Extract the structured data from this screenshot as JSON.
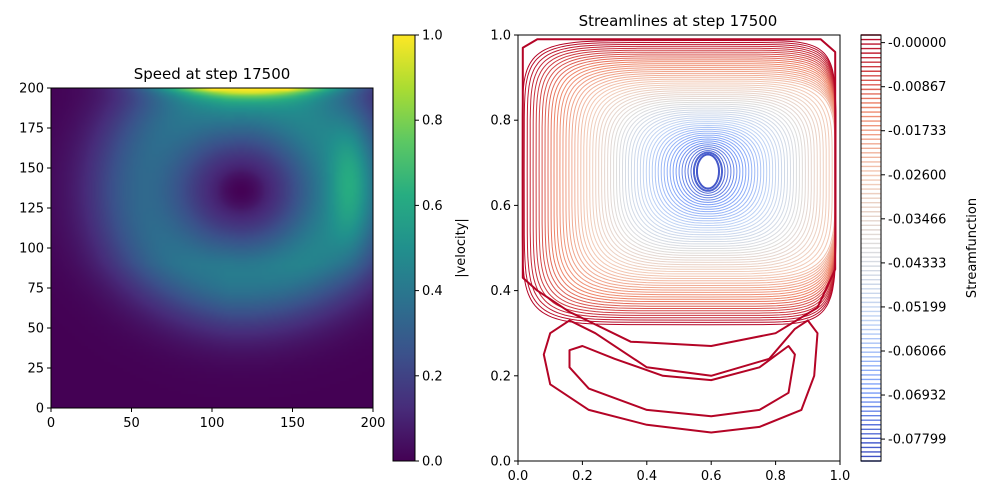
{
  "chart_data": [
    {
      "type": "heatmap",
      "title": "Speed at step 17500",
      "xlim": [
        0,
        200
      ],
      "ylim": [
        0,
        200
      ],
      "xticks": [
        "0",
        "50",
        "100",
        "150",
        "200"
      ],
      "yticks": [
        "0",
        "25",
        "50",
        "75",
        "100",
        "125",
        "150",
        "175",
        "200"
      ],
      "colormap": "viridis",
      "colorbar": {
        "label": "|velocity|",
        "range": [
          0,
          1
        ],
        "ticks": [
          "0.0",
          "0.2",
          "0.4",
          "0.6",
          "0.8",
          "1.0"
        ]
      },
      "features": {
        "vortex_center": [
          118,
          136
        ],
        "max_speed_near_lid": 1.0,
        "speed_ring_peak": 0.45
      }
    },
    {
      "type": "contour",
      "title": "Streamlines at step 17500",
      "xlim": [
        0,
        1
      ],
      "ylim": [
        0,
        1
      ],
      "xticks": [
        "0.0",
        "0.2",
        "0.4",
        "0.6",
        "0.8",
        "1.0"
      ],
      "yticks": [
        "0.0",
        "0.2",
        "0.4",
        "0.6",
        "0.8",
        "1.0"
      ],
      "colormap": "coolwarm",
      "primary_vortex_center": [
        0.59,
        0.68
      ],
      "colorbar": {
        "label": "Streamfunction",
        "range": [
          -0.0823,
          0.0015
        ],
        "ticks": [
          "-0.00000",
          "-0.00867",
          "-0.01733",
          "-0.02600",
          "-0.03466",
          "-0.04333",
          "-0.05199",
          "-0.06066",
          "-0.06932",
          "-0.07799"
        ]
      }
    }
  ]
}
